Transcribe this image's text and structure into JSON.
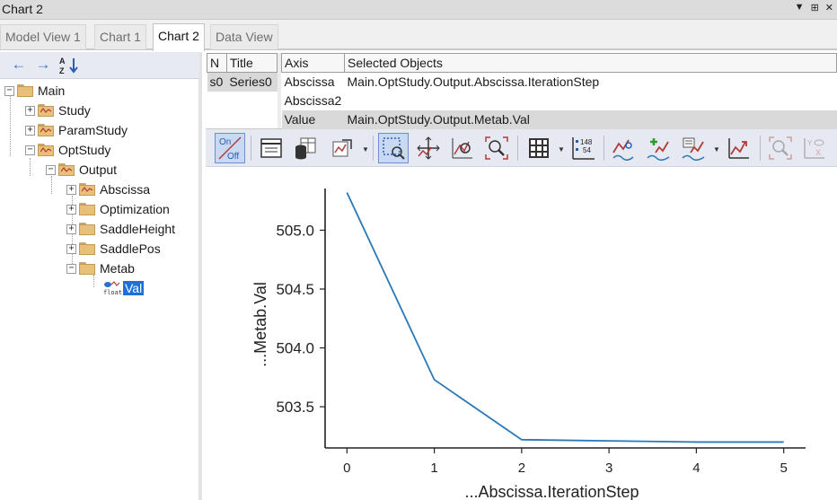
{
  "window": {
    "title": "Chart 2",
    "controls": [
      "▼",
      "⊞",
      "✕"
    ]
  },
  "tabs": [
    {
      "label": "Model View 1",
      "active": false
    },
    {
      "label": "Chart 1",
      "active": false
    },
    {
      "label": "Chart 2",
      "active": true
    },
    {
      "label": "Data View",
      "active": false
    }
  ],
  "tree": {
    "nav": {
      "back_icon": "arrow-left-icon",
      "forward_icon": "arrow-right-icon",
      "sort_icon": "sort-az-icon"
    },
    "nodes": [
      {
        "label": "Main",
        "level": 0,
        "expander": "−",
        "icon": "folder"
      },
      {
        "label": "Study",
        "level": 1,
        "expander": "+",
        "icon": "folder-chart"
      },
      {
        "label": "ParamStudy",
        "level": 1,
        "expander": "+",
        "icon": "folder-chart"
      },
      {
        "label": "OptStudy",
        "level": 1,
        "expander": "−",
        "icon": "folder-chart"
      },
      {
        "label": "Output",
        "level": 2,
        "expander": "−",
        "icon": "folder-chart"
      },
      {
        "label": "Abscissa",
        "level": 3,
        "expander": "+",
        "icon": "folder-chart"
      },
      {
        "label": "Optimization",
        "level": 3,
        "expander": "+",
        "icon": "folder"
      },
      {
        "label": "SaddleHeight",
        "level": 3,
        "expander": "+",
        "icon": "folder"
      },
      {
        "label": "SaddlePos",
        "level": 3,
        "expander": "+",
        "icon": "folder"
      },
      {
        "label": "Metab",
        "level": 3,
        "expander": "−",
        "icon": "folder"
      },
      {
        "label": "Val",
        "level": 4,
        "expander": "",
        "icon": "float-variable",
        "selected": true
      }
    ],
    "float_icon_text": "float"
  },
  "series_table": {
    "headers": [
      "N",
      "Title"
    ],
    "rows": [
      [
        "s0",
        "Series0"
      ]
    ]
  },
  "axis_table": {
    "headers": [
      "Axis",
      "Selected Objects"
    ],
    "rows": [
      [
        "Abscissa",
        "Main.OptStudy.Output.Abscissa.IterationStep"
      ],
      [
        "Abscissa2",
        ""
      ],
      [
        "Value",
        "Main.OptStudy.Output.Metab.Val"
      ]
    ],
    "highlighted_row": 2
  },
  "toolbar": {
    "onoff_on": "On",
    "onoff_off": "Off",
    "data_label_top": "148",
    "data_label_bottom": "54",
    "buttons": [
      "on-off-toggle-icon",
      "table-view-icon",
      "database-grid-icon",
      "chart-export-icon",
      "select-zoom-icon",
      "pan-icon",
      "zoom-fit-icon",
      "zoom-icon",
      "grid-icon",
      "data-labels-icon",
      "series-link-icon",
      "add-series-icon",
      "series-settings-icon",
      "chart-refresh-icon",
      "zoom-disabled-icon",
      "axis-visibility-icon"
    ]
  },
  "chart_data": {
    "type": "line",
    "x": [
      0,
      1,
      2,
      3,
      4,
      5
    ],
    "y": [
      505.32,
      503.73,
      503.22,
      503.21,
      503.2,
      503.2
    ],
    "xlabel": "...Abscissa.IterationStep",
    "ylabel": "...Metab.Val",
    "xticks": [
      "0",
      "1",
      "2",
      "3",
      "4",
      "5"
    ],
    "yticks": [
      "503.5",
      "504.0",
      "504.5",
      "505.0"
    ],
    "ytick_values": [
      503.5,
      504.0,
      504.5,
      505.0
    ],
    "xlim": [
      -0.25,
      5.25
    ],
    "ylim": [
      503.15,
      505.4
    ],
    "line_color": "#2a78b6",
    "grid": false,
    "legend": "none"
  },
  "colors": {
    "accent": "#1e6fd9",
    "highlight_row": "#d9d9d9",
    "toolbar_bg": "#e6e9f2"
  }
}
